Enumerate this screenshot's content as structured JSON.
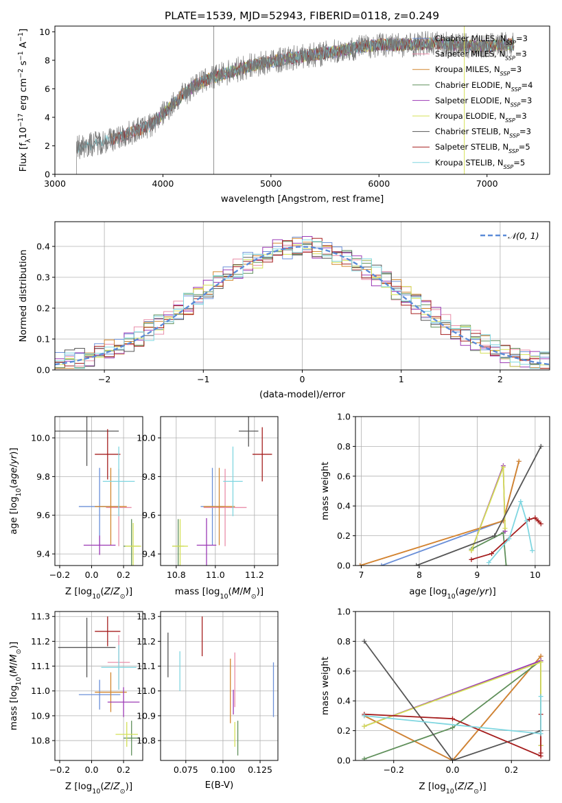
{
  "figure_title": "PLATE=1539, MJD=52943, FIBERID=0118, z=0.249",
  "models": [
    {
      "name": "Chabrier MILES",
      "nssp": "3",
      "color": "#6a8fd8"
    },
    {
      "name": "Salpeter MILES",
      "nssp": "3",
      "color": "#e98da8"
    },
    {
      "name": "Kroupa MILES",
      "nssp": "3",
      "color": "#d2862d"
    },
    {
      "name": "Chabrier ELODIE",
      "nssp": "4",
      "color": "#5f8f5a"
    },
    {
      "name": "Salpeter ELODIE",
      "nssp": "3",
      "color": "#9b39b5"
    },
    {
      "name": "Kroupa ELODIE",
      "nssp": "3",
      "color": "#d4e055"
    },
    {
      "name": "Chabrier STELIB",
      "nssp": "3",
      "color": "#555555"
    },
    {
      "name": "Salpeter STELIB",
      "nssp": "5",
      "color": "#a51d1d"
    },
    {
      "name": "Kroupa STELIB",
      "nssp": "5",
      "color": "#7fd6e0"
    }
  ],
  "chart_data": [
    {
      "id": "spectrum",
      "type": "line",
      "xlabel": "wavelength [Angstrom, rest frame]",
      "ylabel": "Flux [f_λ 10^−17 erg cm^−2 s^−1 A^−1]",
      "xlim": [
        3000,
        7580
      ],
      "ylim": [
        0,
        10.4
      ],
      "xticks": [
        3000,
        4000,
        5000,
        6000,
        7000
      ],
      "yticks": [
        0,
        2,
        4,
        6,
        8,
        10
      ],
      "observed_continuum": {
        "x": [
          3200,
          3500,
          3600,
          3900,
          4100,
          4300,
          4500,
          4800,
          5000,
          5300,
          5600,
          5800,
          6000,
          6300,
          6500,
          6800,
          7000,
          7200
        ],
        "y": [
          1.9,
          2.4,
          2.6,
          3.5,
          5.0,
          6.3,
          6.9,
          7.6,
          7.9,
          8.3,
          8.6,
          8.9,
          9.1,
          9.1,
          9.2,
          9.0,
          9.0,
          9.1
        ]
      },
      "legend_position": "upper right"
    },
    {
      "id": "residuals",
      "type": "line",
      "xlabel": "(data-model)/error",
      "ylabel": "Normed distribution",
      "xlim": [
        -2.5,
        2.5
      ],
      "ylim": [
        0,
        0.48
      ],
      "xticks": [
        -2,
        -1,
        0,
        1,
        2
      ],
      "yticks": [
        0.0,
        0.1,
        0.2,
        0.3,
        0.4
      ],
      "grid": true,
      "reference_label": "𝒩(0, 1)",
      "legend_position": "upper right",
      "bin_width": 0.1
    },
    {
      "id": "age_vs_Z",
      "type": "scatter",
      "xlabel": "Z [log10(Z/Z⊙)]",
      "ylabel": "age [log10(age/yr)]",
      "xlim": [
        -0.23,
        0.32
      ],
      "ylim": [
        9.34,
        10.11
      ],
      "xticks": [
        -0.2,
        0.0,
        0.2
      ],
      "yticks": [
        9.4,
        9.6,
        9.8,
        10.0
      ],
      "grid": true,
      "points": [
        {
          "model": 0,
          "x": 0.05,
          "y": 9.645,
          "xerr": 0.13,
          "yerr": 0.2
        },
        {
          "model": 1,
          "x": 0.17,
          "y": 9.64,
          "xerr": 0.08,
          "yerr": 0.2
        },
        {
          "model": 2,
          "x": 0.12,
          "y": 9.645,
          "xerr": 0.1,
          "yerr": 0.2
        },
        {
          "model": 3,
          "x": 0.25,
          "y": 9.44,
          "xerr": 0.05,
          "yerr": 0.14
        },
        {
          "model": 4,
          "x": 0.05,
          "y": 9.445,
          "xerr": 0.1,
          "yerr": 0.05
        },
        {
          "model": 5,
          "x": 0.26,
          "y": 9.44,
          "xerr": 0.05,
          "yerr": 0.12
        },
        {
          "model": 6,
          "x": -0.03,
          "y": 10.035,
          "xerr": 0.2,
          "yerr": 0.18
        },
        {
          "model": 7,
          "x": 0.1,
          "y": 9.915,
          "xerr": 0.08,
          "yerr": 0.13
        },
        {
          "model": 8,
          "x": 0.17,
          "y": 9.775,
          "xerr": 0.1,
          "yerr": 0.18
        }
      ]
    },
    {
      "id": "age_vs_mass",
      "type": "scatter",
      "xlabel": "mass [log10(M/M⊙)]",
      "ylabel": "",
      "xlim": [
        10.72,
        11.32
      ],
      "ylim": [
        9.34,
        10.11
      ],
      "xticks": [
        10.8,
        11.0,
        11.2
      ],
      "yticks": [
        9.4,
        9.6,
        9.8,
        10.0
      ],
      "grid": true,
      "points": [
        {
          "model": 0,
          "x": 10.985,
          "y": 9.645,
          "xerr": 0.06,
          "yerr": 0.2
        },
        {
          "model": 1,
          "x": 11.05,
          "y": 9.64,
          "xerr": 0.11,
          "yerr": 0.2
        },
        {
          "model": 2,
          "x": 11.02,
          "y": 9.645,
          "xerr": 0.08,
          "yerr": 0.2
        },
        {
          "model": 3,
          "x": 10.81,
          "y": 9.44,
          "xerr": 0.03,
          "yerr": 0.14
        },
        {
          "model": 4,
          "x": 10.955,
          "y": 9.445,
          "xerr": 0.05,
          "yerr": 0.14
        },
        {
          "model": 5,
          "x": 10.82,
          "y": 9.44,
          "xerr": 0.04,
          "yerr": 0.14
        },
        {
          "model": 6,
          "x": 11.17,
          "y": 10.035,
          "xerr": 0.05,
          "yerr": 0.08
        },
        {
          "model": 7,
          "x": 11.24,
          "y": 9.915,
          "xerr": 0.05,
          "yerr": 0.14
        },
        {
          "model": 8,
          "x": 11.09,
          "y": 9.775,
          "xerr": 0.05,
          "yerr": 0.18
        }
      ]
    },
    {
      "id": "mass_weight_vs_age",
      "type": "line",
      "xlabel": "age [log10(age/yr)]",
      "ylabel": "mass weight",
      "xlim": [
        6.9,
        10.25
      ],
      "ylim": [
        0,
        1.0
      ],
      "xticks": [
        7,
        8,
        9,
        10
      ],
      "yticks": [
        0.0,
        0.2,
        0.4,
        0.6,
        0.8,
        1.0
      ],
      "grid": true,
      "series": [
        {
          "model": 0,
          "x": [
            7.35,
            9.45,
            9.72
          ],
          "y": [
            0.0,
            0.3,
            0.7
          ]
        },
        {
          "model": 1,
          "x": [
            6.98,
            9.45,
            9.72
          ],
          "y": [
            0.0,
            0.3,
            0.7
          ]
        },
        {
          "model": 2,
          "x": [
            6.98,
            9.45,
            9.72
          ],
          "y": [
            0.0,
            0.3,
            0.7
          ]
        },
        {
          "model": 3,
          "x": [
            8.9,
            9.45,
            9.5
          ],
          "y": [
            0.11,
            0.22,
            0.0
          ]
        },
        {
          "model": 4,
          "x": [
            8.9,
            9.45,
            9.48
          ],
          "y": [
            0.1,
            0.67,
            0.23
          ]
        },
        {
          "model": 5,
          "x": [
            8.9,
            9.45,
            9.48
          ],
          "y": [
            0.1,
            0.66,
            0.25
          ]
        },
        {
          "model": 6,
          "x": [
            7.95,
            9.3,
            10.1
          ],
          "y": [
            0.0,
            0.2,
            0.8
          ]
        },
        {
          "model": 7,
          "x": [
            8.9,
            9.25,
            9.9,
            10.0,
            10.05,
            10.1
          ],
          "y": [
            0.04,
            0.08,
            0.31,
            0.32,
            0.3,
            0.28
          ]
        },
        {
          "model": 8,
          "x": [
            9.2,
            9.55,
            9.75,
            9.85,
            9.95
          ],
          "y": [
            0.02,
            0.18,
            0.43,
            0.3,
            0.1
          ]
        }
      ]
    },
    {
      "id": "mass_vs_Z",
      "type": "scatter",
      "xlabel": "Z [log10(Z/Z⊙)]",
      "ylabel": "mass [log10(M/M⊙)]",
      "xlim": [
        -0.23,
        0.32
      ],
      "ylim": [
        10.72,
        11.32
      ],
      "xticks": [
        -0.2,
        0.0,
        0.2
      ],
      "yticks": [
        10.8,
        10.9,
        11.0,
        11.1,
        11.2,
        11.3
      ],
      "grid": true,
      "points": [
        {
          "model": 0,
          "x": 0.05,
          "y": 10.985,
          "xerr": 0.13,
          "yerr": 0.06
        },
        {
          "model": 1,
          "x": 0.17,
          "y": 11.115,
          "xerr": 0.07,
          "yerr": 0.11
        },
        {
          "model": 2,
          "x": 0.12,
          "y": 10.995,
          "xerr": 0.1,
          "yerr": 0.08
        },
        {
          "model": 3,
          "x": 0.25,
          "y": 10.81,
          "xerr": 0.05,
          "yerr": 0.07
        },
        {
          "model": 4,
          "x": 0.2,
          "y": 10.955,
          "xerr": 0.1,
          "yerr": 0.06
        },
        {
          "model": 5,
          "x": 0.22,
          "y": 10.825,
          "xerr": 0.07,
          "yerr": 0.05
        },
        {
          "model": 6,
          "x": -0.03,
          "y": 11.175,
          "xerr": 0.18,
          "yerr": 0.12
        },
        {
          "model": 7,
          "x": 0.1,
          "y": 11.24,
          "xerr": 0.08,
          "yerr": 0.06
        },
        {
          "model": 8,
          "x": 0.17,
          "y": 11.095,
          "xerr": 0.11,
          "yerr": 0.09
        }
      ]
    },
    {
      "id": "mass_vs_ebv",
      "type": "scatter",
      "xlabel": "E(B-V)",
      "ylabel": "",
      "xlim": [
        0.058,
        0.137
      ],
      "ylim": [
        10.72,
        11.32
      ],
      "xticks": [
        0.075,
        0.1,
        0.125
      ],
      "xticklabels": [
        "0.075",
        "0.100",
        "0.125"
      ],
      "yticks": [
        10.8,
        10.9,
        11.0,
        11.1,
        11.2,
        11.3
      ],
      "grid": true,
      "points": [
        {
          "model": 0,
          "x": 0.134,
          "y": 11.005,
          "xerr": 0,
          "yerr": 0.11
        },
        {
          "model": 1,
          "x": 0.108,
          "y": 11.045,
          "xerr": 0,
          "yerr": 0.11
        },
        {
          "model": 2,
          "x": 0.105,
          "y": 11.0,
          "xerr": 0,
          "yerr": 0.13
        },
        {
          "model": 3,
          "x": 0.11,
          "y": 10.81,
          "xerr": 0,
          "yerr": 0.07
        },
        {
          "model": 4,
          "x": 0.107,
          "y": 10.955,
          "xerr": 0,
          "yerr": 0.05
        },
        {
          "model": 5,
          "x": 0.108,
          "y": 10.825,
          "xerr": 0,
          "yerr": 0.05
        },
        {
          "model": 6,
          "x": 0.063,
          "y": 11.145,
          "xerr": 0,
          "yerr": 0.09
        },
        {
          "model": 7,
          "x": 0.086,
          "y": 11.22,
          "xerr": 0,
          "yerr": 0.08
        },
        {
          "model": 8,
          "x": 0.071,
          "y": 11.08,
          "xerr": 0,
          "yerr": 0.08
        }
      ]
    },
    {
      "id": "mass_weight_vs_Z",
      "type": "line",
      "xlabel": "Z [log10(Z/Z⊙)]",
      "ylabel": "mass weight",
      "xlim": [
        -0.33,
        0.33
      ],
      "ylim": [
        0,
        1.0
      ],
      "xticks": [
        -0.2,
        0.0,
        0.2
      ],
      "yticks": [
        0.0,
        0.2,
        0.4,
        0.6,
        0.8,
        1.0
      ],
      "grid": true,
      "series": [
        {
          "model": 0,
          "x": [
            -0.3,
            0.0,
            0.3
          ],
          "y": [
            0.3,
            0.0,
            0.7
          ]
        },
        {
          "model": 1,
          "x": [
            -0.3,
            0.0,
            0.3
          ],
          "y": [
            0.3,
            0.0,
            0.7
          ]
        },
        {
          "model": 2,
          "x": [
            -0.3,
            0.0,
            0.3
          ],
          "y": [
            0.3,
            0.0,
            0.7
          ]
        },
        {
          "model": 3,
          "x": [
            -0.3,
            0.0,
            0.3,
            0.3
          ],
          "y": [
            0.01,
            0.22,
            0.67,
            0.1
          ]
        },
        {
          "model": 4,
          "x": [
            -0.3,
            0.3,
            0.3
          ],
          "y": [
            0.23,
            0.67,
            0.1
          ]
        },
        {
          "model": 5,
          "x": [
            -0.3,
            0.3,
            0.3
          ],
          "y": [
            0.23,
            0.66,
            0.1
          ]
        },
        {
          "model": 6,
          "x": [
            -0.3,
            0.0,
            0.3
          ],
          "y": [
            0.8,
            0.0,
            0.2
          ]
        },
        {
          "model": 7,
          "x": [
            -0.3,
            0.0,
            0.3,
            0.3,
            0.3
          ],
          "y": [
            0.31,
            0.28,
            0.03,
            0.31,
            0.05
          ]
        },
        {
          "model": 8,
          "x": [
            -0.3,
            0.3,
            0.3
          ],
          "y": [
            0.3,
            0.18,
            0.43
          ]
        }
      ]
    }
  ]
}
